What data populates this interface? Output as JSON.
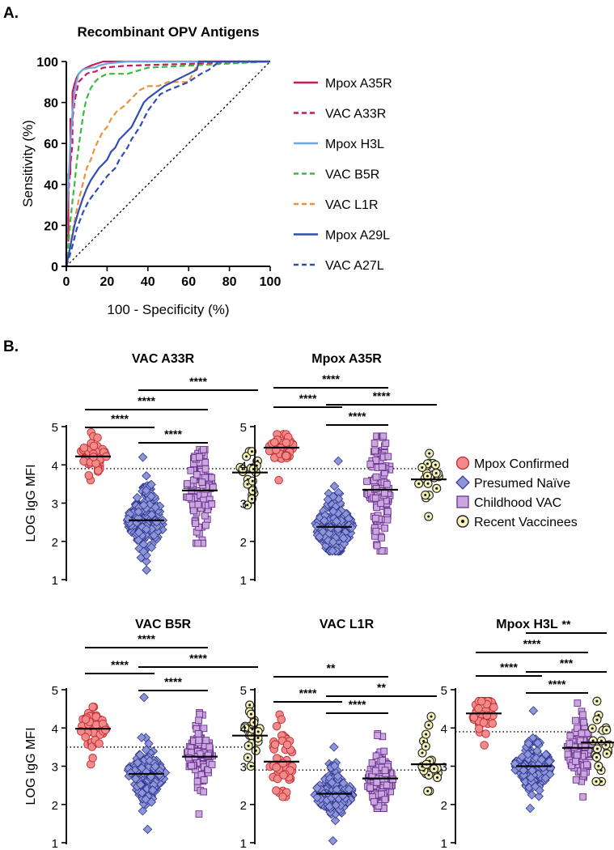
{
  "panel_a": {
    "label": "A.",
    "chart_data": {
      "type": "line",
      "title": "Recombinant OPV Antigens",
      "xlabel": "100 - Specificity (%)",
      "ylabel": "Sensitivity (%)",
      "xlim": [
        0,
        100
      ],
      "ylim": [
        0,
        100
      ],
      "xticks": [
        0,
        20,
        40,
        60,
        80,
        100
      ],
      "yticks": [
        0,
        20,
        40,
        60,
        80,
        100
      ],
      "reference_line": "diagonal",
      "legend_position": "right",
      "series": [
        {
          "name": "Mpox A35R",
          "color": "#c8195c",
          "dash": "solid",
          "x": [
            0,
            0,
            1,
            1,
            2,
            2,
            3,
            3,
            4,
            5,
            6,
            7,
            8,
            10,
            12,
            15,
            18,
            30,
            100
          ],
          "y": [
            0,
            15,
            15,
            45,
            45,
            72,
            72,
            85,
            89,
            92,
            94,
            95,
            96,
            97,
            98,
            99,
            100,
            100,
            100
          ]
        },
        {
          "name": "VAC A33R",
          "color": "#c8195c",
          "dash": "dashed",
          "x": [
            0,
            0,
            1,
            1,
            2,
            3,
            3,
            4,
            5,
            6,
            8,
            10,
            12,
            14,
            18,
            30,
            100
          ],
          "y": [
            0,
            10,
            10,
            35,
            50,
            60,
            72,
            80,
            85,
            90,
            92,
            94,
            95,
            95,
            97,
            98,
            100
          ]
        },
        {
          "name": "Mpox H3L",
          "color": "#6fa8e0",
          "dash": "solid",
          "x": [
            0,
            0,
            1,
            2,
            3,
            4,
            5,
            6,
            8,
            12,
            14,
            16,
            20,
            30,
            100
          ],
          "y": [
            0,
            20,
            40,
            60,
            75,
            85,
            90,
            94,
            96,
            97,
            97,
            98,
            99,
            100,
            100
          ]
        },
        {
          "name": "VAC B5R",
          "color": "#3cba3c",
          "dash": "dashed",
          "x": [
            0,
            1,
            2,
            3,
            4,
            5,
            6,
            7,
            8,
            9,
            10,
            12,
            14,
            16,
            20,
            24,
            30,
            40,
            100
          ],
          "y": [
            0,
            10,
            22,
            32,
            40,
            50,
            58,
            65,
            72,
            78,
            82,
            87,
            90,
            92,
            94,
            94,
            94,
            97,
            100
          ]
        },
        {
          "name": "VAC L1R",
          "color": "#f0913a",
          "dash": "dashed",
          "x": [
            0,
            2,
            4,
            6,
            8,
            10,
            12,
            14,
            16,
            18,
            20,
            22,
            25,
            28,
            32,
            36,
            40,
            45,
            50,
            55,
            60,
            65,
            100
          ],
          "y": [
            0,
            10,
            22,
            32,
            40,
            48,
            52,
            58,
            62,
            66,
            68,
            72,
            76,
            78,
            82,
            86,
            88,
            88,
            90,
            90,
            90,
            100,
            100
          ]
        },
        {
          "name": "Mpox A29L",
          "color": "#2f4db3",
          "dash": "solid",
          "x": [
            0,
            1,
            2,
            4,
            6,
            8,
            10,
            12,
            14,
            16,
            18,
            20,
            22,
            24,
            26,
            28,
            30,
            32,
            34,
            36,
            38,
            40,
            44,
            48,
            52,
            56,
            60,
            64,
            65,
            100
          ],
          "y": [
            0,
            5,
            10,
            20,
            27,
            33,
            38,
            42,
            45,
            48,
            50,
            52,
            56,
            58,
            62,
            64,
            66,
            68,
            72,
            76,
            80,
            82,
            85,
            88,
            90,
            92,
            94,
            96,
            100,
            100
          ]
        },
        {
          "name": "VAC A27L",
          "color": "#2f4db3",
          "dash": "dashed",
          "x": [
            0,
            1,
            3,
            5,
            8,
            11,
            14,
            17,
            20,
            22,
            24,
            26,
            28,
            30,
            32,
            34,
            36,
            38,
            40,
            43,
            46,
            50,
            55,
            60,
            66,
            70,
            75,
            100
          ],
          "y": [
            0,
            3,
            10,
            18,
            26,
            32,
            36,
            40,
            44,
            46,
            48,
            52,
            55,
            58,
            62,
            65,
            68,
            72,
            76,
            80,
            84,
            86,
            88,
            90,
            94,
            96,
            100,
            100
          ]
        }
      ]
    }
  },
  "panel_b": {
    "label": "B.",
    "legend": [
      {
        "name": "Mpox Confirmed",
        "marker": "circle",
        "fill": "#f18b8b",
        "stroke": "#c0282d"
      },
      {
        "name": "Presumed Naïve",
        "marker": "diamond",
        "fill": "#8e95d6",
        "stroke": "#2c3490"
      },
      {
        "name": "Childhood VAC",
        "marker": "square",
        "fill": "#c9a8dd",
        "stroke": "#6b2f8f"
      },
      {
        "name": "Recent Vaccinees",
        "marker": "dotted-circle",
        "fill": "#f3f0b8",
        "stroke": "#222222"
      }
    ],
    "chart_data": [
      {
        "type": "scatter",
        "title": "VAC A33R",
        "ylabel": "LOG IgG MFI",
        "ylim": [
          1,
          5
        ],
        "yticks": [
          1,
          2,
          3,
          4,
          5
        ],
        "cutoff": 3.9,
        "groups": [
          {
            "name": "Mpox Confirmed",
            "median": 4.22,
            "center": 4.22,
            "spread": 0.28,
            "min": 3.6,
            "max": 4.85,
            "n": 45
          },
          {
            "name": "Presumed Naïve",
            "median": 2.55,
            "center": 2.55,
            "spread": 0.42,
            "min": 1.25,
            "max": 4.2,
            "n": 180
          },
          {
            "name": "Childhood VAC",
            "median": 3.33,
            "center": 3.3,
            "spread": 0.65,
            "min": 1.95,
            "max": 4.4,
            "n": 110
          },
          {
            "name": "Recent Vaccinees",
            "median": 3.8,
            "center": 3.8,
            "spread": 0.35,
            "min": 2.95,
            "max": 4.35,
            "n": 22
          }
        ],
        "comparisons": [
          {
            "from": 0,
            "to": 1,
            "label": "****"
          },
          {
            "from": 1,
            "to": 2,
            "label": "****"
          },
          {
            "from": 0,
            "to": 2,
            "label": "****"
          },
          {
            "from": 1,
            "to": 3,
            "label": "****"
          }
        ]
      },
      {
        "type": "scatter",
        "title": "Mpox A35R",
        "ylabel": "",
        "ylim": [
          1,
          5
        ],
        "yticks": [
          1,
          2,
          3,
          4,
          5
        ],
        "cutoff": 3.9,
        "groups": [
          {
            "name": "Mpox Confirmed",
            "median": 4.45,
            "center": 4.45,
            "spread": 0.22,
            "min": 3.6,
            "max": 4.8,
            "n": 45
          },
          {
            "name": "Presumed Naïve",
            "median": 2.38,
            "center": 2.38,
            "spread": 0.38,
            "min": 1.75,
            "max": 4.1,
            "n": 180
          },
          {
            "name": "Childhood VAC",
            "median": 3.35,
            "center": 3.4,
            "spread": 0.75,
            "min": 1.75,
            "max": 4.75,
            "n": 110
          },
          {
            "name": "Recent Vaccinees",
            "median": 3.62,
            "center": 3.62,
            "spread": 0.35,
            "min": 2.65,
            "max": 4.3,
            "n": 22
          }
        ],
        "comparisons": [
          {
            "from": 0,
            "to": 1,
            "label": "****"
          },
          {
            "from": 1,
            "to": 2,
            "label": "****"
          },
          {
            "from": 1,
            "to": 3,
            "label": "****"
          },
          {
            "from": 0,
            "to": 2,
            "label": "****"
          }
        ]
      },
      {
        "type": "scatter",
        "title": "VAC B5R",
        "ylabel": "LOG IgG MFI",
        "ylim": [
          1,
          5
        ],
        "yticks": [
          1,
          2,
          3,
          4,
          5
        ],
        "cutoff": 3.5,
        "groups": [
          {
            "name": "Mpox Confirmed",
            "median": 3.98,
            "center": 3.98,
            "spread": 0.3,
            "min": 3.05,
            "max": 4.55,
            "n": 45
          },
          {
            "name": "Presumed Naïve",
            "median": 2.8,
            "center": 2.8,
            "spread": 0.32,
            "min": 1.35,
            "max": 4.8,
            "n": 180
          },
          {
            "name": "Childhood VAC",
            "median": 3.25,
            "center": 3.25,
            "spread": 0.4,
            "min": 1.75,
            "max": 4.4,
            "n": 110
          },
          {
            "name": "Recent Vaccinees",
            "median": 3.8,
            "center": 3.8,
            "spread": 0.35,
            "min": 3.0,
            "max": 4.6,
            "n": 22
          }
        ],
        "comparisons": [
          {
            "from": 0,
            "to": 1,
            "label": "****"
          },
          {
            "from": 1,
            "to": 2,
            "label": "****"
          },
          {
            "from": 1,
            "to": 3,
            "label": "****"
          },
          {
            "from": 0,
            "to": 2,
            "label": "****"
          }
        ]
      },
      {
        "type": "scatter",
        "title": "VAC L1R",
        "ylabel": "",
        "ylim": [
          1,
          5
        ],
        "yticks": [
          1,
          2,
          3,
          4,
          5
        ],
        "cutoff": 2.9,
        "groups": [
          {
            "name": "Mpox Confirmed",
            "median": 3.12,
            "center": 3.12,
            "spread": 0.5,
            "min": 2.2,
            "max": 4.35,
            "n": 45
          },
          {
            "name": "Presumed Naïve",
            "median": 2.28,
            "center": 2.28,
            "spread": 0.3,
            "min": 1.05,
            "max": 3.5,
            "n": 180
          },
          {
            "name": "Childhood VAC",
            "median": 2.68,
            "center": 2.62,
            "spread": 0.42,
            "min": 1.9,
            "max": 3.85,
            "n": 110
          },
          {
            "name": "Recent Vaccinees",
            "median": 3.05,
            "center": 3.05,
            "spread": 0.45,
            "min": 2.35,
            "max": 4.3,
            "n": 22
          }
        ],
        "comparisons": [
          {
            "from": 0,
            "to": 1,
            "label": "****"
          },
          {
            "from": 1,
            "to": 2,
            "label": "****"
          },
          {
            "from": 1,
            "to": 3,
            "label": "**"
          },
          {
            "from": 0,
            "to": 2,
            "label": "**"
          }
        ]
      },
      {
        "type": "scatter",
        "title": "Mpox H3L",
        "ylabel": "",
        "ylim": [
          1,
          5
        ],
        "yticks": [
          1,
          2,
          3,
          4,
          5
        ],
        "cutoff": 3.9,
        "groups": [
          {
            "name": "Mpox Confirmed",
            "median": 4.38,
            "center": 4.38,
            "spread": 0.25,
            "min": 3.55,
            "max": 4.7,
            "n": 45
          },
          {
            "name": "Presumed Naïve",
            "median": 3.0,
            "center": 3.0,
            "spread": 0.32,
            "min": 1.9,
            "max": 4.45,
            "n": 180
          },
          {
            "name": "Childhood VAC",
            "median": 3.48,
            "center": 3.45,
            "spread": 0.4,
            "min": 2.2,
            "max": 4.65,
            "n": 110
          },
          {
            "name": "Recent Vaccinees",
            "median": 3.62,
            "center": 3.62,
            "spread": 0.4,
            "min": 2.6,
            "max": 4.7,
            "n": 22
          }
        ],
        "comparisons": [
          {
            "from": 0,
            "to": 1,
            "label": "****"
          },
          {
            "from": 1,
            "to": 2,
            "label": "****"
          },
          {
            "from": 1,
            "to": 3,
            "label": "***"
          },
          {
            "from": 0,
            "to": 2,
            "label": "****"
          },
          {
            "from": 1,
            "to": 3,
            "label": "**"
          }
        ]
      }
    ]
  }
}
